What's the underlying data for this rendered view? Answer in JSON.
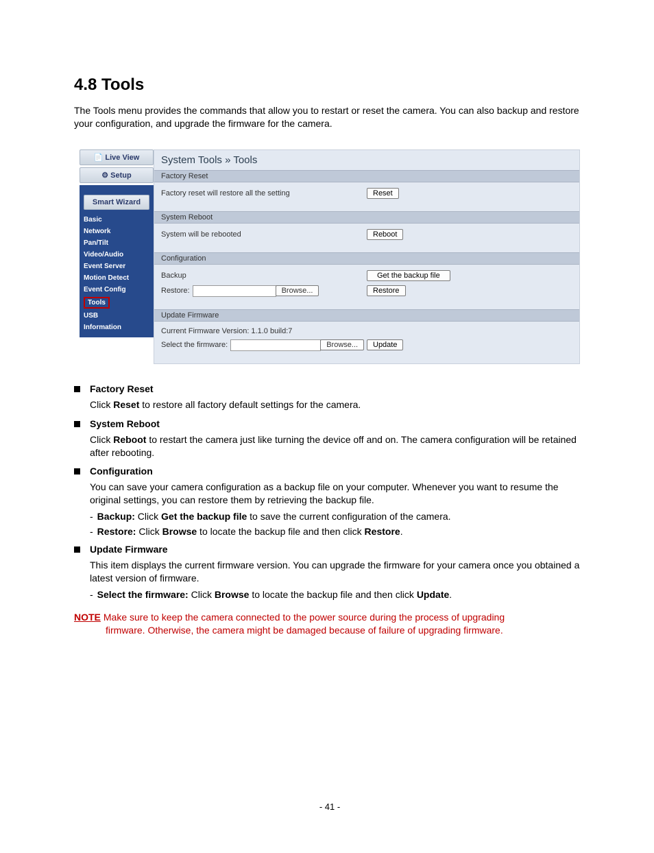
{
  "section": {
    "title": "4.8  Tools",
    "intro": "The Tools menu provides the commands that allow you to restart or reset the camera. You can also backup and restore your configuration, and upgrade the firmware for the camera."
  },
  "ui": {
    "sidebar": {
      "live_view": "Live View",
      "setup": "Setup",
      "smart_wizard": "Smart Wizard",
      "items": [
        "Basic",
        "Network",
        "Pan/Tilt",
        "Video/Audio",
        "Event Server",
        "Motion Detect",
        "Event Config",
        "Tools",
        "USB",
        "Information"
      ],
      "active_index": 7
    },
    "breadcrumb": "System Tools » Tools",
    "factory_reset": {
      "header": "Factory Reset",
      "desc": "Factory reset will restore all the setting",
      "btn": "Reset"
    },
    "system_reboot": {
      "header": "System Reboot",
      "desc": "System will be rebooted",
      "btn": "Reboot"
    },
    "configuration": {
      "header": "Configuration",
      "backup_label": "Backup",
      "backup_btn": "Get the backup file",
      "restore_label": "Restore:",
      "browse_btn": "Browse...",
      "restore_btn": "Restore"
    },
    "update_firmware": {
      "header": "Update Firmware",
      "version_line": "Current Firmware Version: 1.1.0 build:7",
      "select_label": "Select the firmware:",
      "browse_btn": "Browse...",
      "update_btn": "Update"
    }
  },
  "doc": {
    "items": [
      {
        "title": "Factory Reset",
        "body_html": "Click <b>Reset</b> to restore all factory default settings for the camera."
      },
      {
        "title": "System Reboot",
        "body_html": "Click <b>Reboot</b> to restart the camera just like turning the device off and on. The camera configuration will be retained after rebooting."
      },
      {
        "title": "Configuration",
        "body_html": "You can save your camera configuration as a backup file on your computer. Whenever you want to resume the original settings, you can restore them by retrieving the backup file.",
        "subs": [
          "<b>Backup:</b> Click <b>Get the backup file</b> to save the current configuration of the camera.",
          "<b>Restore:</b> Click <b>Browse</b> to locate the backup file and then click <b>Restore</b>."
        ]
      },
      {
        "title": "Update Firmware",
        "body_html": "This item displays the current firmware version. You can upgrade the firmware for your camera once you obtained a latest version of firmware.",
        "subs": [
          "<b>Select the firmware:</b> Click <b>Browse</b> to locate the backup file and then click <b>Update</b>."
        ]
      }
    ],
    "note_label": "NOTE",
    "note_line1": "Make sure to keep the camera connected to the power source during the process of upgrading",
    "note_line2": "firmware. Otherwise, the camera might be damaged because of failure of upgrading firmware."
  },
  "footer": "- 41 -",
  "colors": {
    "sidebar_bg": "#274a8c",
    "panel_bg": "#e3e9f2",
    "panel_hdr": "#bfc9d8",
    "highlight_border": "#c00000",
    "note_color": "#c00000"
  }
}
